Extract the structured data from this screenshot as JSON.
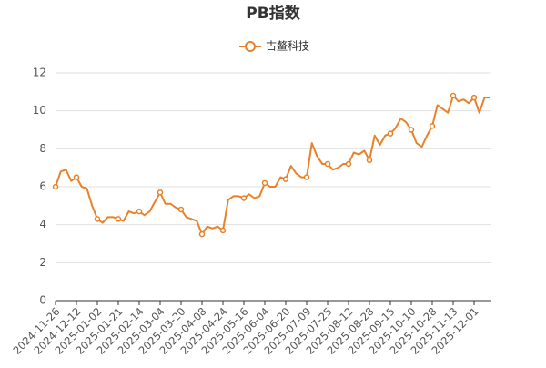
{
  "chart_data": {
    "type": "line",
    "title": "PB指数",
    "categories": [
      "2024-11-26",
      null,
      null,
      null,
      "2024-12-12",
      null,
      null,
      null,
      "2025-01-02",
      null,
      null,
      null,
      "2025-01-21",
      null,
      null,
      null,
      "2025-02-14",
      null,
      null,
      null,
      "2025-03-04",
      null,
      null,
      null,
      "2025-03-20",
      null,
      null,
      null,
      "2025-04-08",
      null,
      null,
      null,
      "2025-04-24",
      null,
      null,
      null,
      "2025-05-16",
      null,
      null,
      null,
      "2025-06-04",
      null,
      null,
      null,
      "2025-06-20",
      null,
      null,
      null,
      "2025-07-09",
      null,
      null,
      null,
      "2025-07-25",
      null,
      null,
      null,
      "2025-08-12",
      null,
      null,
      null,
      "2025-08-28",
      null,
      null,
      null,
      "2025-09-15",
      null,
      null,
      null,
      "2025-10-10",
      null,
      null,
      null,
      "2025-10-28",
      null,
      null,
      null,
      "2025-11-13",
      null,
      null,
      null,
      "2025-12-01",
      null,
      null,
      null
    ],
    "series": [
      {
        "name": "古鳌科技",
        "color": "#e8822a",
        "values": [
          6.0,
          6.8,
          6.9,
          6.3,
          6.5,
          6.0,
          5.9,
          5.0,
          4.3,
          4.1,
          4.4,
          4.4,
          4.3,
          4.2,
          4.7,
          4.6,
          4.7,
          4.5,
          4.7,
          5.2,
          5.7,
          5.1,
          5.1,
          4.9,
          4.8,
          4.4,
          4.3,
          4.2,
          3.5,
          3.9,
          3.8,
          3.9,
          3.7,
          5.3,
          5.5,
          5.5,
          5.4,
          5.6,
          5.4,
          5.5,
          6.2,
          6.0,
          6.0,
          6.5,
          6.4,
          7.1,
          6.7,
          6.5,
          6.5,
          8.3,
          7.6,
          7.2,
          7.2,
          6.9,
          7.0,
          7.2,
          7.2,
          7.8,
          7.7,
          7.9,
          7.4,
          8.7,
          8.2,
          8.7,
          8.8,
          9.1,
          9.6,
          9.4,
          9.0,
          8.3,
          8.1,
          8.7,
          9.2,
          10.3,
          10.1,
          9.9,
          10.8,
          10.5,
          10.6,
          10.4,
          10.7,
          9.9,
          10.7,
          10.7
        ]
      }
    ],
    "ylim": [
      0,
      12
    ],
    "yticks": [
      0,
      2,
      4,
      6,
      8,
      10,
      12
    ],
    "grid": true,
    "legend": "top"
  }
}
